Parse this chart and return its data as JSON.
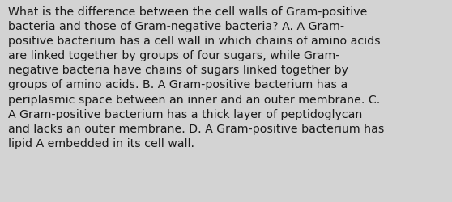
{
  "background_color": "#d3d3d3",
  "text_color": "#1a1a1a",
  "font_size": 10.2,
  "font_family": "DejaVu Sans",
  "lines": [
    "What is the difference between the cell walls of Gram-positive",
    "bacteria and those of Gram-negative bacteria? A. A Gram-",
    "positive bacterium has a cell wall in which chains of amino acids",
    "are linked together by groups of four sugars, while Gram-",
    "negative bacteria have chains of sugars linked together by",
    "groups of amino acids. B. A Gram-positive bacterium has a",
    "periplasmic space between an inner and an outer membrane. C.",
    "A Gram-positive bacterium has a thick layer of peptidoglycan",
    "and lacks an outer membrane. D. A Gram-positive bacterium has",
    "lipid A embedded in its cell wall."
  ],
  "fig_width": 5.58,
  "fig_height": 2.51,
  "dpi": 100
}
